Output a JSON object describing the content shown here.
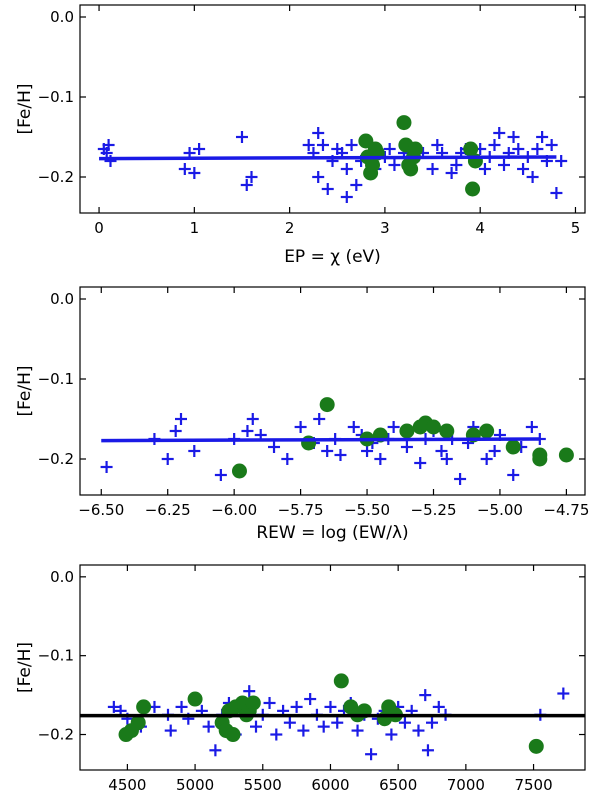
{
  "colors": {
    "fe1": "#1a1ae6",
    "fe2": "#1a7a1a",
    "fit_blue": "#1a1ae6",
    "fit_black": "#000000"
  },
  "chart_data": [
    {
      "type": "scatter",
      "xlabel": "EP = χ (eV)",
      "ylabel": "[Fe/H]",
      "xlim": [
        -0.2,
        5.1
      ],
      "ylim": [
        -0.245,
        0.015
      ],
      "xticks": [
        "0",
        "1",
        "2",
        "3",
        "4",
        "5"
      ],
      "xtick_values": [
        0,
        1,
        2,
        3,
        4,
        5
      ],
      "yticks": [
        "0.0",
        "−0.1",
        "−0.2"
      ],
      "ytick_values": [
        0.0,
        -0.1,
        -0.2
      ],
      "fit_line": {
        "x": [
          0.0,
          4.8
        ],
        "y": [
          -0.177,
          -0.175
        ]
      },
      "series": [
        {
          "marker": "plus",
          "color": "fe1",
          "points": [
            [
              0.05,
              -0.165
            ],
            [
              0.08,
              -0.17
            ],
            [
              0.1,
              -0.16
            ],
            [
              0.12,
              -0.18
            ],
            [
              0.9,
              -0.19
            ],
            [
              0.95,
              -0.17
            ],
            [
              1.0,
              -0.195
            ],
            [
              1.05,
              -0.165
            ],
            [
              1.5,
              -0.15
            ],
            [
              1.55,
              -0.21
            ],
            [
              1.6,
              -0.2
            ],
            [
              2.2,
              -0.16
            ],
            [
              2.25,
              -0.17
            ],
            [
              2.3,
              -0.145
            ],
            [
              2.3,
              -0.2
            ],
            [
              2.35,
              -0.16
            ],
            [
              2.4,
              -0.215
            ],
            [
              2.45,
              -0.18
            ],
            [
              2.5,
              -0.165
            ],
            [
              2.55,
              -0.17
            ],
            [
              2.6,
              -0.19
            ],
            [
              2.6,
              -0.225
            ],
            [
              2.65,
              -0.16
            ],
            [
              2.7,
              -0.21
            ],
            [
              2.75,
              -0.18
            ],
            [
              2.85,
              -0.17
            ],
            [
              2.9,
              -0.19
            ],
            [
              3.0,
              -0.175
            ],
            [
              3.05,
              -0.165
            ],
            [
              3.1,
              -0.185
            ],
            [
              3.2,
              -0.17
            ],
            [
              3.3,
              -0.18
            ],
            [
              3.4,
              -0.17
            ],
            [
              3.5,
              -0.19
            ],
            [
              3.55,
              -0.16
            ],
            [
              3.6,
              -0.17
            ],
            [
              3.7,
              -0.195
            ],
            [
              3.75,
              -0.185
            ],
            [
              3.8,
              -0.17
            ],
            [
              3.85,
              -0.165
            ],
            [
              3.95,
              -0.18
            ],
            [
              4.0,
              -0.165
            ],
            [
              4.05,
              -0.19
            ],
            [
              4.1,
              -0.175
            ],
            [
              4.15,
              -0.16
            ],
            [
              4.2,
              -0.145
            ],
            [
              4.25,
              -0.185
            ],
            [
              4.3,
              -0.17
            ],
            [
              4.35,
              -0.15
            ],
            [
              4.4,
              -0.165
            ],
            [
              4.45,
              -0.19
            ],
            [
              4.5,
              -0.175
            ],
            [
              4.55,
              -0.2
            ],
            [
              4.6,
              -0.165
            ],
            [
              4.65,
              -0.15
            ],
            [
              4.7,
              -0.18
            ],
            [
              4.75,
              -0.16
            ],
            [
              4.8,
              -0.22
            ],
            [
              4.85,
              -0.18
            ]
          ]
        },
        {
          "marker": "circle",
          "color": "fe2",
          "points": [
            [
              2.8,
              -0.155
            ],
            [
              2.82,
              -0.175
            ],
            [
              2.85,
              -0.195
            ],
            [
              2.87,
              -0.185
            ],
            [
              2.9,
              -0.165
            ],
            [
              2.92,
              -0.17
            ],
            [
              3.2,
              -0.132
            ],
            [
              3.22,
              -0.16
            ],
            [
              3.25,
              -0.185
            ],
            [
              3.27,
              -0.19
            ],
            [
              3.3,
              -0.175
            ],
            [
              3.32,
              -0.165
            ],
            [
              3.9,
              -0.165
            ],
            [
              3.92,
              -0.215
            ],
            [
              3.95,
              -0.18
            ]
          ]
        }
      ]
    },
    {
      "type": "scatter",
      "xlabel": "REW = log (EW/λ)",
      "ylabel": "[Fe/H]",
      "xlim": [
        -6.58,
        -4.68
      ],
      "ylim": [
        -0.245,
        0.015
      ],
      "xticks": [
        "−6.50",
        "−6.25",
        "−6.00",
        "−5.75",
        "−5.50",
        "−5.25",
        "−5.00",
        "−4.75"
      ],
      "xtick_values": [
        -6.5,
        -6.25,
        -6.0,
        -5.75,
        -5.5,
        -5.25,
        -5.0,
        -4.75
      ],
      "yticks": [
        "0.0",
        "−0.1",
        "−0.2"
      ],
      "ytick_values": [
        0.0,
        -0.1,
        -0.2
      ],
      "fit_line": {
        "x": [
          -6.5,
          -4.85
        ],
        "y": [
          -0.177,
          -0.175
        ]
      },
      "series": [
        {
          "marker": "plus",
          "color": "fe1",
          "points": [
            [
              -6.48,
              -0.21
            ],
            [
              -6.3,
              -0.175
            ],
            [
              -6.25,
              -0.2
            ],
            [
              -6.22,
              -0.165
            ],
            [
              -6.2,
              -0.15
            ],
            [
              -6.15,
              -0.19
            ],
            [
              -6.05,
              -0.22
            ],
            [
              -6.0,
              -0.175
            ],
            [
              -5.95,
              -0.165
            ],
            [
              -5.93,
              -0.15
            ],
            [
              -5.9,
              -0.17
            ],
            [
              -5.85,
              -0.185
            ],
            [
              -5.8,
              -0.2
            ],
            [
              -5.75,
              -0.16
            ],
            [
              -5.7,
              -0.18
            ],
            [
              -5.68,
              -0.15
            ],
            [
              -5.65,
              -0.19
            ],
            [
              -5.62,
              -0.175
            ],
            [
              -5.6,
              -0.195
            ],
            [
              -5.55,
              -0.16
            ],
            [
              -5.52,
              -0.17
            ],
            [
              -5.5,
              -0.19
            ],
            [
              -5.48,
              -0.18
            ],
            [
              -5.45,
              -0.2
            ],
            [
              -5.42,
              -0.175
            ],
            [
              -5.4,
              -0.16
            ],
            [
              -5.35,
              -0.185
            ],
            [
              -5.3,
              -0.205
            ],
            [
              -5.28,
              -0.175
            ],
            [
              -5.25,
              -0.165
            ],
            [
              -5.22,
              -0.19
            ],
            [
              -5.2,
              -0.2
            ],
            [
              -5.18,
              -0.175
            ],
            [
              -5.15,
              -0.225
            ],
            [
              -5.12,
              -0.18
            ],
            [
              -5.1,
              -0.16
            ],
            [
              -5.05,
              -0.2
            ],
            [
              -5.02,
              -0.19
            ],
            [
              -5.0,
              -0.17
            ],
            [
              -4.95,
              -0.22
            ],
            [
              -4.92,
              -0.185
            ],
            [
              -4.88,
              -0.16
            ],
            [
              -4.85,
              -0.175
            ]
          ]
        },
        {
          "marker": "circle",
          "color": "fe2",
          "points": [
            [
              -5.98,
              -0.215
            ],
            [
              -5.72,
              -0.18
            ],
            [
              -5.65,
              -0.132
            ],
            [
              -5.5,
              -0.175
            ],
            [
              -5.35,
              -0.165
            ],
            [
              -5.3,
              -0.16
            ],
            [
              -5.28,
              -0.155
            ],
            [
              -5.25,
              -0.16
            ],
            [
              -5.2,
              -0.165
            ],
            [
              -5.1,
              -0.17
            ],
            [
              -5.05,
              -0.165
            ],
            [
              -4.95,
              -0.185
            ],
            [
              -4.85,
              -0.2
            ],
            [
              -4.85,
              -0.195
            ],
            [
              -4.75,
              -0.195
            ],
            [
              -5.45,
              -0.17
            ]
          ]
        }
      ]
    },
    {
      "type": "scatter",
      "xlabel": "",
      "ylabel": "[Fe/H]",
      "xlim": [
        4150,
        7880
      ],
      "ylim": [
        -0.245,
        0.015
      ],
      "xticks": [
        "4500",
        "5000",
        "5500",
        "6000",
        "6500",
        "7000",
        "7500"
      ],
      "xtick_values": [
        4500,
        5000,
        5500,
        6000,
        6500,
        7000,
        7500
      ],
      "yticks": [
        "0.0",
        "−0.1",
        "−0.2"
      ],
      "ytick_values": [
        0.0,
        -0.1,
        -0.2
      ],
      "fit_line": {
        "x": [
          4150,
          7880
        ],
        "y": [
          -0.176,
          -0.176
        ]
      },
      "fit_color": "fit_black",
      "series": [
        {
          "marker": "plus",
          "color": "fe1",
          "points": [
            [
              4400,
              -0.165
            ],
            [
              4450,
              -0.17
            ],
            [
              4500,
              -0.18
            ],
            [
              4600,
              -0.19
            ],
            [
              4700,
              -0.165
            ],
            [
              4800,
              -0.175
            ],
            [
              4820,
              -0.195
            ],
            [
              4900,
              -0.165
            ],
            [
              4950,
              -0.18
            ],
            [
              5050,
              -0.17
            ],
            [
              5100,
              -0.19
            ],
            [
              5150,
              -0.22
            ],
            [
              5200,
              -0.175
            ],
            [
              5250,
              -0.16
            ],
            [
              5300,
              -0.2
            ],
            [
              5350,
              -0.165
            ],
            [
              5400,
              -0.145
            ],
            [
              5450,
              -0.19
            ],
            [
              5500,
              -0.175
            ],
            [
              5550,
              -0.16
            ],
            [
              5600,
              -0.2
            ],
            [
              5650,
              -0.17
            ],
            [
              5700,
              -0.185
            ],
            [
              5750,
              -0.165
            ],
            [
              5800,
              -0.195
            ],
            [
              5850,
              -0.155
            ],
            [
              5900,
              -0.175
            ],
            [
              5950,
              -0.19
            ],
            [
              6000,
              -0.165
            ],
            [
              6050,
              -0.185
            ],
            [
              6100,
              -0.17
            ],
            [
              6150,
              -0.16
            ],
            [
              6200,
              -0.195
            ],
            [
              6250,
              -0.175
            ],
            [
              6300,
              -0.225
            ],
            [
              6350,
              -0.18
            ],
            [
              6400,
              -0.17
            ],
            [
              6450,
              -0.2
            ],
            [
              6500,
              -0.165
            ],
            [
              6550,
              -0.185
            ],
            [
              6600,
              -0.17
            ],
            [
              6650,
              -0.195
            ],
            [
              6700,
              -0.15
            ],
            [
              6720,
              -0.22
            ],
            [
              6750,
              -0.185
            ],
            [
              6800,
              -0.165
            ],
            [
              6850,
              -0.175
            ],
            [
              7550,
              -0.175
            ],
            [
              7720,
              -0.148
            ]
          ]
        },
        {
          "marker": "circle",
          "color": "fe2",
          "points": [
            [
              4490,
              -0.2
            ],
            [
              4530,
              -0.195
            ],
            [
              4580,
              -0.185
            ],
            [
              4620,
              -0.165
            ],
            [
              5000,
              -0.155
            ],
            [
              5200,
              -0.185
            ],
            [
              5230,
              -0.195
            ],
            [
              5250,
              -0.17
            ],
            [
              5280,
              -0.2
            ],
            [
              5300,
              -0.165
            ],
            [
              5350,
              -0.16
            ],
            [
              5380,
              -0.175
            ],
            [
              5400,
              -0.17
            ],
            [
              5430,
              -0.16
            ],
            [
              6080,
              -0.132
            ],
            [
              6150,
              -0.165
            ],
            [
              6200,
              -0.175
            ],
            [
              6250,
              -0.17
            ],
            [
              6400,
              -0.18
            ],
            [
              6430,
              -0.165
            ],
            [
              6480,
              -0.175
            ],
            [
              7520,
              -0.215
            ]
          ]
        }
      ]
    }
  ]
}
